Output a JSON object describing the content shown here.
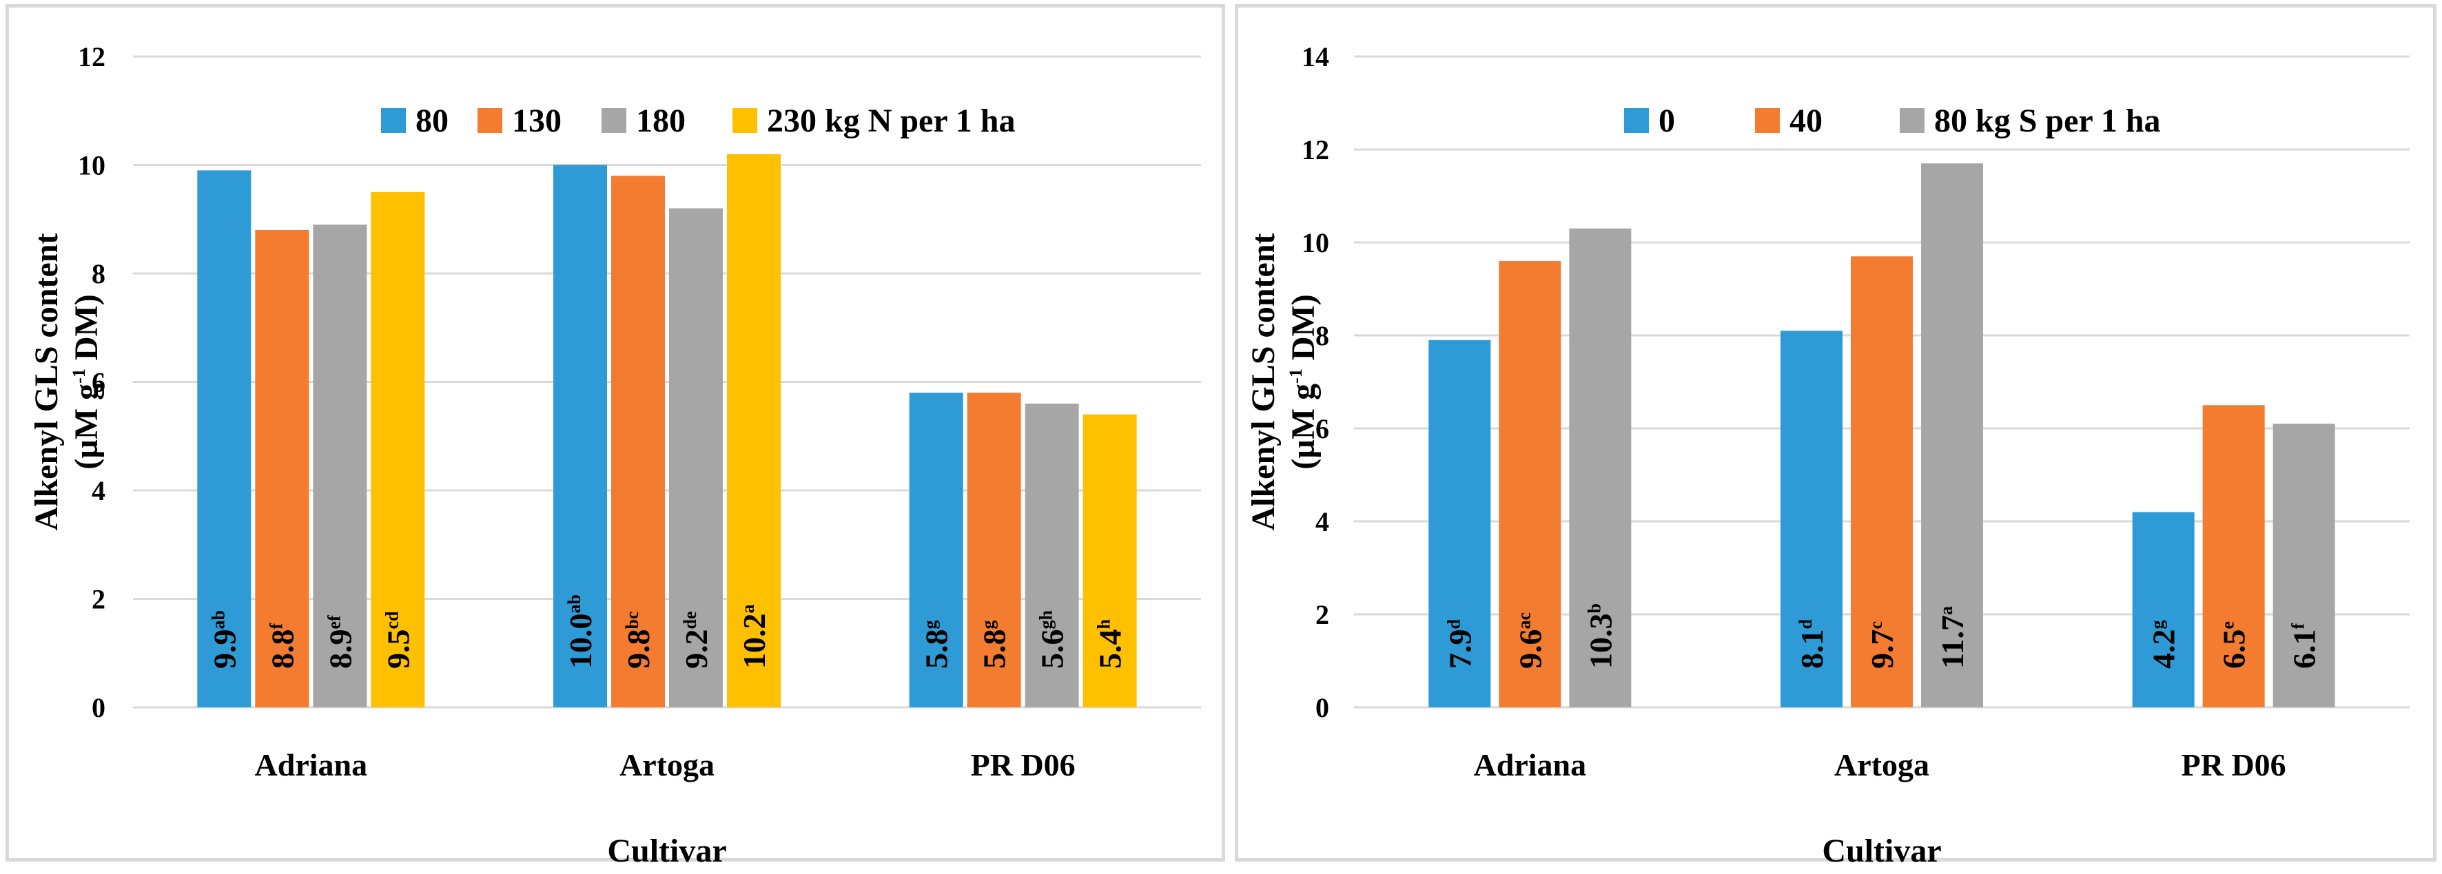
{
  "chart_data": [
    {
      "type": "bar",
      "title": "",
      "xlabel": "Cultivar",
      "ylabel": [
        "Alkenyl GLS content",
        "(µM g",
        "-1",
        " DM)"
      ],
      "ylim": [
        0,
        12
      ],
      "yticks": [
        0,
        2,
        4,
        6,
        8,
        10,
        12
      ],
      "grid": true,
      "legend_position": "top",
      "categories": [
        "Adriana",
        "Artoga",
        "PR D06"
      ],
      "series": [
        {
          "name": "80",
          "legend_label": "80",
          "color": "#2e9bd6",
          "values": [
            9.9,
            10.0,
            5.8
          ],
          "letters": [
            "ab",
            "ab",
            "g"
          ]
        },
        {
          "name": "130",
          "legend_label": "130",
          "color": "#f47c30",
          "values": [
            8.8,
            9.8,
            5.8
          ],
          "letters": [
            "f",
            "bc",
            "g"
          ]
        },
        {
          "name": "180",
          "legend_label": "180",
          "color": "#a6a6a6",
          "values": [
            8.9,
            9.2,
            5.6
          ],
          "letters": [
            "ef",
            "de",
            "gh"
          ]
        },
        {
          "name": "230",
          "legend_label": "230 kg N per 1 ha",
          "color": "#ffc000",
          "values": [
            9.5,
            10.2,
            5.4
          ],
          "letters": [
            "cd",
            "a",
            "h"
          ]
        }
      ]
    },
    {
      "type": "bar",
      "title": "",
      "xlabel": "Cultivar",
      "ylabel": [
        "Alkenyl  GLS content",
        "(µM g",
        "-1",
        " DM)"
      ],
      "ylim": [
        0,
        14
      ],
      "yticks": [
        0,
        2,
        4,
        6,
        8,
        10,
        12,
        14
      ],
      "grid": true,
      "legend_position": "top",
      "categories": [
        "Adriana",
        "Artoga",
        "PR D06"
      ],
      "series": [
        {
          "name": "0",
          "legend_label": "0",
          "color": "#2e9bd6",
          "values": [
            7.9,
            8.1,
            4.2
          ],
          "letters": [
            "d",
            "d",
            "g"
          ]
        },
        {
          "name": "40",
          "legend_label": "40",
          "color": "#f47c30",
          "values": [
            9.6,
            9.7,
            6.5
          ],
          "letters": [
            "ac",
            "c",
            "e"
          ]
        },
        {
          "name": "80",
          "legend_label": "80 kg S per 1 ha",
          "color": "#a6a6a6",
          "values": [
            10.3,
            11.7,
            6.1
          ],
          "letters": [
            "b",
            "a",
            "f"
          ]
        }
      ]
    }
  ]
}
